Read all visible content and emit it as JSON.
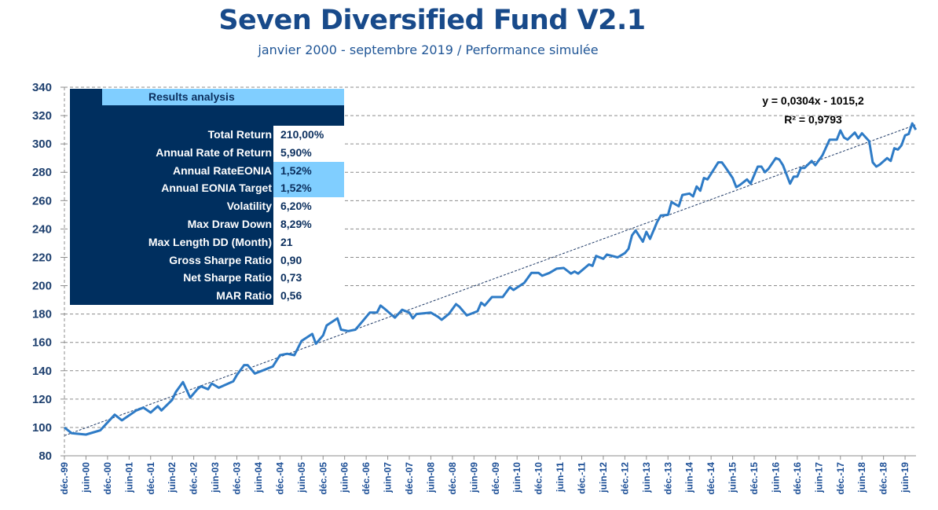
{
  "chart_data": {
    "type": "line",
    "title": "Seven Diversified Fund V2.1",
    "subtitle": "janvier 2000 - septembre 2019 / Performance simulée",
    "xlabel": "",
    "ylabel": "",
    "ylim": [
      80,
      340
    ],
    "yticks": [
      80,
      100,
      120,
      140,
      160,
      180,
      200,
      220,
      240,
      260,
      280,
      300,
      320,
      340
    ],
    "xtick_labels": [
      "déc.-99",
      "juin-00",
      "déc.-00",
      "juin-01",
      "déc.-01",
      "juin-02",
      "déc.-02",
      "juin-03",
      "déc.-03",
      "juin-04",
      "déc.-04",
      "juin-05",
      "déc.-05",
      "juin-06",
      "déc.-06",
      "juin-07",
      "déc.-07",
      "juin-08",
      "déc.-08",
      "juin-09",
      "déc.-09",
      "juin-10",
      "déc.-10",
      "juin-11",
      "déc.-11",
      "juin-12",
      "déc.-12",
      "juin-13",
      "déc.-13",
      "juin-14",
      "déc.-14",
      "juin-15",
      "déc.-15",
      "juin-16",
      "déc.-16",
      "juin-17",
      "déc.-17",
      "juin-18",
      "déc.-18",
      "juin-19"
    ],
    "grid": "horizontal dashed",
    "colors": {
      "line": "#2e7bc6",
      "trend": "#1f3a66",
      "table_dark": "#002f5f",
      "table_highlight": "#80ceff",
      "title": "#184a8a"
    },
    "series": [
      {
        "points": [
          [
            "1999-12",
            100
          ],
          [
            "2000-02",
            96
          ],
          [
            "2000-06",
            95
          ],
          [
            "2000-10",
            98
          ],
          [
            "2001-02",
            109
          ],
          [
            "2001-04",
            105
          ],
          [
            "2001-08",
            112
          ],
          [
            "2001-10",
            114
          ],
          [
            "2001-12",
            110.5
          ],
          [
            "2002-02",
            115
          ],
          [
            "2002-03",
            112
          ],
          [
            "2002-06",
            119.5
          ],
          [
            "2002-07",
            125
          ],
          [
            "2002-09",
            132
          ],
          [
            "2002-11",
            121
          ],
          [
            "2003-01",
            127
          ],
          [
            "2003-02",
            129
          ],
          [
            "2003-04",
            127
          ],
          [
            "2003-05",
            131
          ],
          [
            "2003-07",
            128
          ],
          [
            "2003-11",
            132.5
          ],
          [
            "2003-12",
            137
          ],
          [
            "2004-02",
            144
          ],
          [
            "2004-03",
            144
          ],
          [
            "2004-05",
            138
          ],
          [
            "2004-07",
            140
          ],
          [
            "2004-10",
            143
          ],
          [
            "2004-12",
            151
          ],
          [
            "2005-02",
            152
          ],
          [
            "2005-04",
            151
          ],
          [
            "2005-06",
            161
          ],
          [
            "2005-09",
            166
          ],
          [
            "2005-10",
            159
          ],
          [
            "2005-12",
            165
          ],
          [
            "2006-01",
            172
          ],
          [
            "2006-04",
            177
          ],
          [
            "2006-05",
            169
          ],
          [
            "2006-07",
            168
          ],
          [
            "2006-09",
            169
          ],
          [
            "2006-11",
            175
          ],
          [
            "2007-01",
            181
          ],
          [
            "2007-03",
            181
          ],
          [
            "2007-04",
            186
          ],
          [
            "2007-05",
            184
          ],
          [
            "2007-08",
            177.5
          ],
          [
            "2007-10",
            183
          ],
          [
            "2007-12",
            181
          ],
          [
            "2008-01",
            177
          ],
          [
            "2008-02",
            180
          ],
          [
            "2008-06",
            181
          ],
          [
            "2008-08",
            178
          ],
          [
            "2008-09",
            176
          ],
          [
            "2008-11",
            180
          ],
          [
            "2009-01",
            187
          ],
          [
            "2009-02",
            185
          ],
          [
            "2009-04",
            179
          ],
          [
            "2009-07",
            182
          ],
          [
            "2009-08",
            188
          ],
          [
            "2009-09",
            186
          ],
          [
            "2009-11",
            192
          ],
          [
            "2010-02",
            192
          ],
          [
            "2010-04",
            199
          ],
          [
            "2010-05",
            197
          ],
          [
            "2010-08",
            202
          ],
          [
            "2010-10",
            209
          ],
          [
            "2010-12",
            209
          ],
          [
            "2011-01",
            207
          ],
          [
            "2011-03",
            209
          ],
          [
            "2011-05",
            212
          ],
          [
            "2011-07",
            212.5
          ],
          [
            "2011-09",
            208.5
          ],
          [
            "2011-10",
            210
          ],
          [
            "2011-11",
            208.5
          ],
          [
            "2012-02",
            215
          ],
          [
            "2012-03",
            214
          ],
          [
            "2012-04",
            221
          ],
          [
            "2012-06",
            219
          ],
          [
            "2012-07",
            222
          ],
          [
            "2012-10",
            220
          ],
          [
            "2012-12",
            223
          ],
          [
            "2013-01",
            226
          ],
          [
            "2013-02",
            235.5
          ],
          [
            "2013-03",
            239
          ],
          [
            "2013-05",
            231
          ],
          [
            "2013-06",
            238
          ],
          [
            "2013-07",
            233
          ],
          [
            "2013-09",
            245
          ],
          [
            "2013-10",
            249.5
          ],
          [
            "2013-12",
            250
          ],
          [
            "2014-01",
            259
          ],
          [
            "2014-03",
            256
          ],
          [
            "2014-04",
            264
          ],
          [
            "2014-06",
            265
          ],
          [
            "2014-07",
            263
          ],
          [
            "2014-08",
            270
          ],
          [
            "2014-09",
            267
          ],
          [
            "2014-10",
            276
          ],
          [
            "2014-11",
            275
          ],
          [
            "2015-02",
            287
          ],
          [
            "2015-03",
            287
          ],
          [
            "2015-04",
            283.5
          ],
          [
            "2015-06",
            276
          ],
          [
            "2015-07",
            269.5
          ],
          [
            "2015-08",
            271
          ],
          [
            "2015-10",
            275
          ],
          [
            "2015-11",
            272
          ],
          [
            "2016-01",
            284
          ],
          [
            "2016-02",
            284
          ],
          [
            "2016-03",
            280
          ],
          [
            "2016-04",
            282.5
          ],
          [
            "2016-06",
            290
          ],
          [
            "2016-07",
            289
          ],
          [
            "2016-08",
            285
          ],
          [
            "2016-10",
            272
          ],
          [
            "2016-11",
            277
          ],
          [
            "2016-12",
            277
          ],
          [
            "2017-01",
            283
          ],
          [
            "2017-02",
            283
          ],
          [
            "2017-04",
            288
          ],
          [
            "2017-05",
            285
          ],
          [
            "2017-07",
            292
          ],
          [
            "2017-09",
            303
          ],
          [
            "2017-11",
            303
          ],
          [
            "2017-12",
            309.5
          ],
          [
            "2018-01",
            304.5
          ],
          [
            "2018-02",
            303
          ],
          [
            "2018-04",
            308
          ],
          [
            "2018-05",
            304
          ],
          [
            "2018-06",
            307.5
          ],
          [
            "2018-08",
            302
          ],
          [
            "2018-09",
            287
          ],
          [
            "2018-10",
            284
          ],
          [
            "2018-11",
            285.5
          ],
          [
            "2019-01",
            290
          ],
          [
            "2019-02",
            288
          ],
          [
            "2019-03",
            297
          ],
          [
            "2019-04",
            296
          ],
          [
            "2019-05",
            299
          ],
          [
            "2019-06",
            306
          ],
          [
            "2019-07",
            307
          ],
          [
            "2019-08",
            314.5
          ],
          [
            "2019-09",
            310
          ]
        ]
      }
    ],
    "trendline": {
      "type": "linear",
      "slope": 0.0304,
      "intercept": -1015.2,
      "equation_label": "y = 0,0304x - 1015,2",
      "r2_label": "R² = 0,9793"
    }
  },
  "results_table": {
    "title": "Results analysis",
    "rows": [
      {
        "label": "Total Return",
        "value": "210,00%",
        "highlight": false
      },
      {
        "label": "Annual Rate of Return",
        "value": "5,90%",
        "highlight": false
      },
      {
        "label": "Annual RateEONIA",
        "value": "1,52%",
        "highlight": true
      },
      {
        "label": "Annual EONIA Target",
        "value": "1,52%",
        "highlight": true
      },
      {
        "label": "Volatility",
        "value": "6,20%",
        "highlight": false
      },
      {
        "label": "Max Draw Down",
        "value": "8,29%",
        "highlight": false
      },
      {
        "label": "Max Length DD (Month)",
        "value": "21",
        "highlight": false
      },
      {
        "label": "Gross Sharpe Ratio",
        "value": "0,90",
        "highlight": false
      },
      {
        "label": "Net Sharpe Ratio",
        "value": "0,73",
        "highlight": false
      },
      {
        "label": "MAR Ratio",
        "value": "0,56",
        "highlight": false
      }
    ]
  }
}
